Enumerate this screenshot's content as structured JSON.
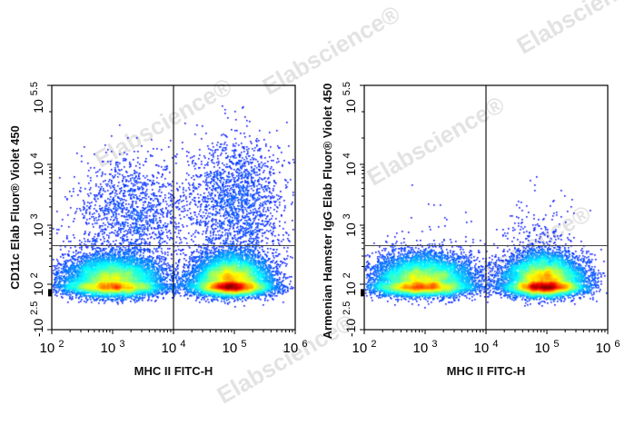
{
  "watermark": "Elabscience®",
  "chart_data": [
    {
      "type": "scatter",
      "subtype": "flow-cytometry-density-dot-plot",
      "xlabel": "MHC II FITC-H",
      "ylabel": "CD11c Elab Fluor® Violet 450",
      "x_scale": "log",
      "xlim": [
        100,
        1000000
      ],
      "x_ticks": [
        {
          "base": "10",
          "exp": "2"
        },
        {
          "base": "10",
          "exp": "3"
        },
        {
          "base": "10",
          "exp": "4"
        },
        {
          "base": "10",
          "exp": "5"
        },
        {
          "base": "10",
          "exp": "6"
        }
      ],
      "y_scale": "biexponential",
      "ylim": [
        "-10^2.5",
        "10^5.5"
      ],
      "y_ticks": [
        {
          "base": "-10",
          "exp": "2.5"
        },
        {
          "base": "10",
          "exp": "2"
        },
        {
          "base": "10",
          "exp": "3"
        },
        {
          "base": "10",
          "exp": "4"
        },
        {
          "base": "10",
          "exp": "5.5"
        }
      ],
      "gates": {
        "vertical_x": 10000,
        "horizontal_y": 450
      },
      "colormap": "jet density",
      "populations_log10": [
        {
          "x_mean": 3.0,
          "x_sd": 0.42,
          "y_mean": 2.05,
          "y_sd": 0.2,
          "n": 9000
        },
        {
          "x_mean": 4.95,
          "x_sd": 0.33,
          "y_mean": 2.05,
          "y_sd": 0.2,
          "n": 9500
        },
        {
          "x_mean": 3.3,
          "x_sd": 0.45,
          "y_mean": 3.2,
          "y_sd": 0.4,
          "n": 1400
        },
        {
          "x_mean": 5.0,
          "x_sd": 0.4,
          "y_mean": 3.4,
          "y_sd": 0.45,
          "n": 1900
        }
      ]
    },
    {
      "type": "scatter",
      "subtype": "flow-cytometry-density-dot-plot",
      "xlabel": "MHC II FITC-H",
      "ylabel": "Armenian Hamster IgG Elab Fluor® Violet 450",
      "x_scale": "log",
      "xlim": [
        100,
        1000000
      ],
      "x_ticks": [
        {
          "base": "10",
          "exp": "2"
        },
        {
          "base": "10",
          "exp": "3"
        },
        {
          "base": "10",
          "exp": "4"
        },
        {
          "base": "10",
          "exp": "5"
        },
        {
          "base": "10",
          "exp": "6"
        }
      ],
      "y_scale": "biexponential",
      "ylim": [
        "-10^2.5",
        "10^5.5"
      ],
      "y_ticks": [
        {
          "base": "-10",
          "exp": "2.5"
        },
        {
          "base": "10",
          "exp": "2"
        },
        {
          "base": "10",
          "exp": "3"
        },
        {
          "base": "10",
          "exp": "4"
        },
        {
          "base": "10",
          "exp": "5.5"
        }
      ],
      "gates": {
        "vertical_x": 10000,
        "horizontal_y": 450
      },
      "colormap": "jet density",
      "populations_log10": [
        {
          "x_mean": 2.95,
          "x_sd": 0.42,
          "y_mean": 2.05,
          "y_sd": 0.2,
          "n": 9000
        },
        {
          "x_mean": 4.95,
          "x_sd": 0.33,
          "y_mean": 2.05,
          "y_sd": 0.2,
          "n": 9500
        },
        {
          "x_mean": 3.5,
          "x_sd": 0.7,
          "y_mean": 2.9,
          "y_sd": 0.3,
          "n": 40
        },
        {
          "x_mean": 4.85,
          "x_sd": 0.3,
          "y_mean": 2.85,
          "y_sd": 0.3,
          "n": 160
        }
      ]
    }
  ]
}
